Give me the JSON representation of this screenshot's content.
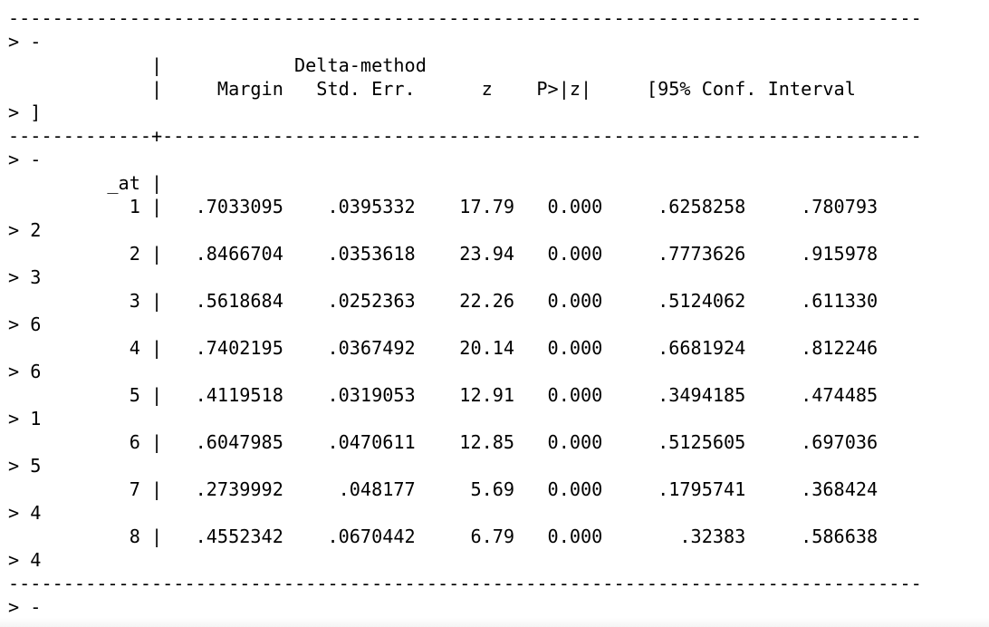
{
  "terminal": {
    "lines": [
      "-----------------------------------------------------------------------------------",
      "> -",
      "             |            Delta-method",
      "             |     Margin   Std. Err.      z    P>|z|     [95% Conf. Interval",
      "> ]",
      "-------------+---------------------------------------------------------------------",
      "> -",
      "",
      "         _at |",
      "           1 |   .7033095    .0395332    17.79   0.000     .6258258     .780793",
      "> 2",
      "           2 |   .8466704    .0353618    23.94   0.000     .7773626     .915978",
      "> 3",
      "           3 |   .5618684    .0252363    22.26   0.000     .5124062     .611330",
      "> 6",
      "           4 |   .7402195    .0367492    20.14   0.000     .6681924     .812246",
      "> 6",
      "           5 |   .4119518    .0319053    12.91   0.000     .3494185     .474485",
      "> 1",
      "           6 |   .6047985    .0470611    12.85   0.000     .5125605     .697036",
      "> 5",
      "           7 |   .2739992     .048177     5.69   0.000     .1795741     .368424",
      "> 4",
      "           8 |   .4552342    .0670442     6.79   0.000       .32383     .586638",
      "> 4",
      "-----------------------------------------------------------------------------------",
      "> -"
    ]
  }
}
